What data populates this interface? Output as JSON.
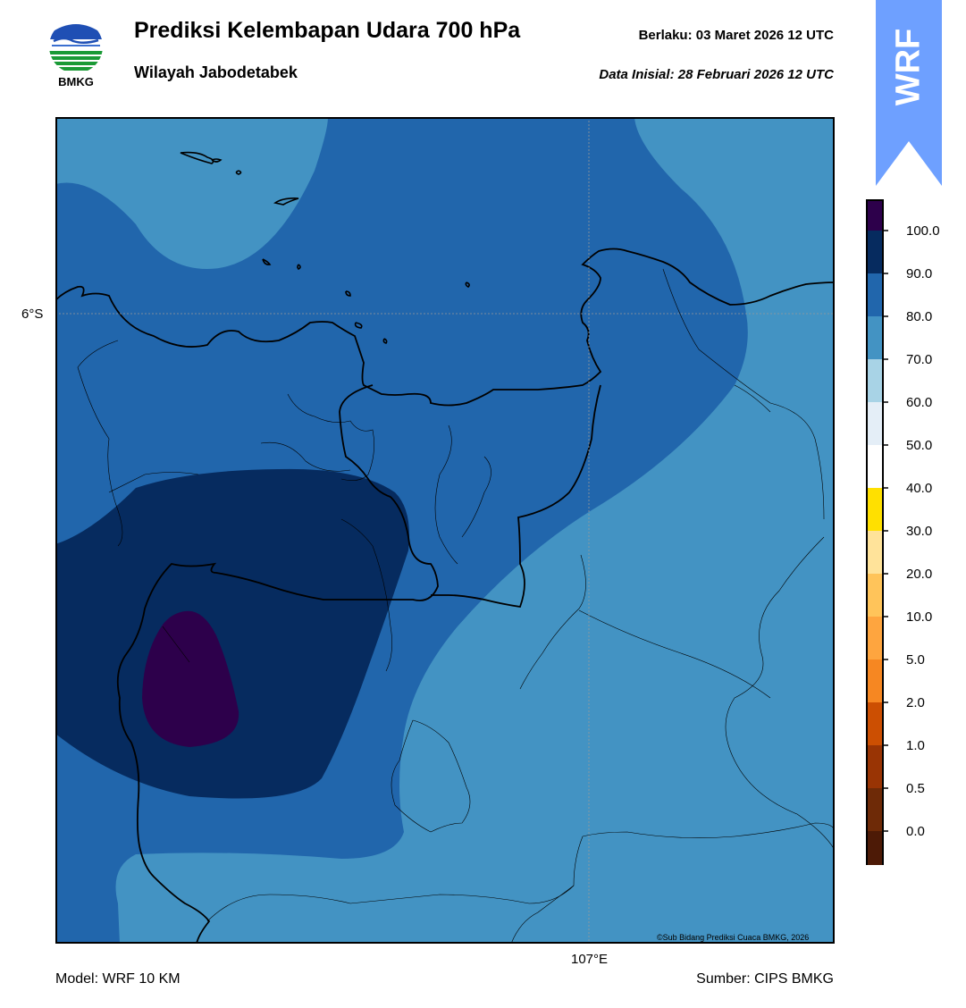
{
  "header": {
    "title": "Prediksi Kelembapan Udara 700 hPa",
    "subtitle": "Wilayah Jabodetabek",
    "valid": "Berlaku:  03 Maret 2026 12 UTC",
    "initial": "Data Inisial:  28 Februari 2026 12 UTC"
  },
  "logo": {
    "text": "BMKG",
    "icon": "bmkg-logo"
  },
  "badge": {
    "text": "WRF",
    "color": "#6ea0ff"
  },
  "map": {
    "lat_label": "6°S",
    "lon_label": "107°E",
    "credit": "©Sub Bidang Prediksi Cuaca BMKG, 2026",
    "colors": {
      "c70_80": "#4393c3",
      "c80_90": "#2166ac",
      "c90_100": "#062b5f",
      "c100": "#2d004b",
      "coast": "#000000"
    }
  },
  "footer": {
    "model": "Model: WRF 10 KM",
    "source": "Sumber: CIPS BMKG"
  },
  "colorbar": {
    "ticks": [
      "100.0",
      "90.0",
      "80.0",
      "70.0",
      "60.0",
      "50.0",
      "40.0",
      "30.0",
      "20.0",
      "10.0",
      "5.0",
      "2.0",
      "1.0",
      "0.5",
      "0.0"
    ],
    "colors": [
      "#2d004b",
      "#062b5f",
      "#2166ac",
      "#4393c3",
      "#a8d3e6",
      "#e4eef7",
      "#ffffff",
      "#ffe000",
      "#ffe39a",
      "#ffc45a",
      "#fea53f",
      "#f68722",
      "#cc4f02",
      "#993404",
      "#6e2a07",
      "#4d1a06",
      "#b40f0f",
      "#e8392b"
    ]
  }
}
